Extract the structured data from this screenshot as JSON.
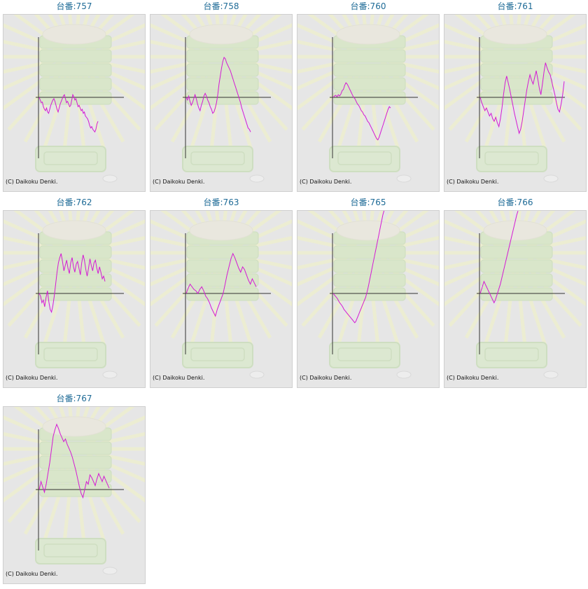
{
  "page": {
    "title_prefix": "台番:",
    "copyright": "(C) Daikoku Denki."
  },
  "colors": {
    "title": "#1d6a96",
    "line": "#d41ad4",
    "axis": "#333333",
    "panel_bg": "#e6e6e6"
  },
  "chart_data": [
    {
      "type": "line",
      "title": "台番:757",
      "machine": "757",
      "y": [
        0,
        -0.1,
        -0.2,
        -0.18,
        -0.35,
        -0.45,
        -0.5,
        -0.4,
        -0.55,
        -0.6,
        -0.45,
        -0.3,
        -0.2,
        -0.1,
        -0.05,
        -0.15,
        -0.3,
        -0.45,
        -0.55,
        -0.4,
        -0.25,
        -0.15,
        -0.05,
        0.05,
        0.1,
        -0.05,
        -0.2,
        -0.15,
        -0.25,
        -0.35,
        -0.3,
        -0.1,
        0.1,
        0.02,
        -0.1,
        -0.05,
        -0.2,
        -0.35,
        -0.3,
        -0.4,
        -0.5,
        -0.45,
        -0.6,
        -0.55,
        -0.7,
        -0.75,
        -0.8,
        -0.9,
        -1.05,
        -1.15,
        -1.1,
        -1.2,
        -1.25,
        -1.3,
        -1.2,
        -1.0,
        -0.9
      ]
    },
    {
      "type": "line",
      "title": "台番:758",
      "machine": "758",
      "y": [
        0,
        -0.1,
        0.05,
        -0.15,
        -0.3,
        -0.2,
        -0.05,
        0.1,
        -0.05,
        -0.25,
        -0.4,
        -0.5,
        -0.3,
        -0.15,
        0.05,
        0.15,
        0.05,
        -0.1,
        -0.2,
        -0.35,
        -0.45,
        -0.6,
        -0.55,
        -0.4,
        -0.2,
        0.1,
        0.5,
        0.8,
        1.1,
        1.35,
        1.5,
        1.45,
        1.3,
        1.2,
        1.1,
        1.0,
        0.85,
        0.7,
        0.55,
        0.4,
        0.25,
        0.1,
        -0.05,
        -0.2,
        -0.4,
        -0.55,
        -0.7,
        -0.85,
        -1.0,
        -1.15,
        -1.2,
        -1.3
      ]
    },
    {
      "type": "line",
      "title": "台番:760",
      "machine": "760",
      "y": [
        0,
        0.05,
        0.08,
        0.02,
        0.1,
        0.05,
        0.12,
        0.25,
        0.3,
        0.45,
        0.55,
        0.5,
        0.4,
        0.3,
        0.2,
        0.1,
        0.0,
        -0.05,
        -0.15,
        -0.25,
        -0.3,
        -0.4,
        -0.5,
        -0.55,
        -0.65,
        -0.7,
        -0.8,
        -0.9,
        -0.95,
        -1.05,
        -1.15,
        -1.25,
        -1.35,
        -1.45,
        -1.55,
        -1.6,
        -1.5,
        -1.35,
        -1.2,
        -1.05,
        -0.9,
        -0.75,
        -0.6,
        -0.45,
        -0.35,
        -0.4
      ]
    },
    {
      "type": "line",
      "title": "台番:761",
      "machine": "761",
      "y": [
        0,
        -0.2,
        -0.35,
        -0.5,
        -0.4,
        -0.55,
        -0.7,
        -0.6,
        -0.8,
        -0.9,
        -0.75,
        -0.95,
        -1.1,
        -0.8,
        -0.4,
        0.1,
        0.55,
        0.8,
        0.55,
        0.3,
        0.0,
        -0.3,
        -0.6,
        -0.85,
        -1.1,
        -1.35,
        -1.2,
        -0.9,
        -0.5,
        -0.1,
        0.3,
        0.6,
        0.85,
        0.65,
        0.5,
        0.75,
        1.0,
        0.7,
        0.35,
        0.1,
        0.5,
        0.95,
        1.3,
        1.1,
        0.95,
        0.85,
        0.6,
        0.35,
        0.1,
        -0.2,
        -0.45,
        -0.55,
        -0.25,
        0.1,
        0.6
      ]
    },
    {
      "type": "line",
      "title": "台番:762",
      "machine": "762",
      "y": [
        0,
        -0.1,
        -0.35,
        -0.25,
        -0.5,
        -0.15,
        0.1,
        -0.3,
        -0.6,
        -0.7,
        -0.45,
        -0.1,
        0.35,
        0.8,
        1.15,
        1.35,
        1.5,
        1.2,
        0.85,
        1.05,
        1.25,
        0.95,
        0.75,
        1.15,
        1.35,
        1.0,
        0.8,
        1.1,
        1.2,
        0.95,
        0.7,
        1.15,
        1.45,
        1.25,
        0.9,
        0.65,
        0.95,
        1.3,
        1.05,
        0.85,
        1.15,
        1.25,
        0.95,
        0.75,
        1.0,
        0.8,
        0.55,
        0.65,
        0.45
      ]
    },
    {
      "type": "line",
      "title": "台番:763",
      "machine": "763",
      "y": [
        0,
        0.2,
        0.35,
        0.25,
        0.15,
        0.1,
        0.0,
        0.15,
        0.25,
        0.1,
        -0.1,
        -0.2,
        -0.35,
        -0.55,
        -0.7,
        -0.85,
        -0.6,
        -0.4,
        -0.2,
        0.0,
        0.35,
        0.7,
        1.0,
        1.3,
        1.5,
        1.35,
        1.15,
        0.95,
        0.8,
        1.0,
        0.9,
        0.7,
        0.5,
        0.35,
        0.55,
        0.4,
        0.25
      ]
    },
    {
      "type": "line",
      "title": "台番:765",
      "machine": "765",
      "y": [
        0,
        -0.05,
        -0.1,
        -0.15,
        -0.2,
        -0.28,
        -0.35,
        -0.4,
        -0.45,
        -0.52,
        -0.6,
        -0.65,
        -0.7,
        -0.75,
        -0.8,
        -0.85,
        -0.9,
        -0.95,
        -1.0,
        -1.05,
        -1.1,
        -1.05,
        -0.95,
        -0.85,
        -0.75,
        -0.65,
        -0.55,
        -0.45,
        -0.35,
        -0.25,
        -0.15,
        0.0,
        0.15,
        0.35,
        0.55,
        0.75,
        0.95,
        1.15,
        1.35,
        1.55,
        1.75,
        1.95,
        2.15,
        2.35,
        2.55,
        2.75,
        2.95,
        3.1,
        3.25
      ]
    },
    {
      "type": "line",
      "title": "台番:766",
      "machine": "766",
      "y": [
        0,
        0.15,
        0.3,
        0.45,
        0.35,
        0.25,
        0.15,
        0.05,
        -0.05,
        -0.15,
        -0.25,
        -0.35,
        -0.25,
        -0.1,
        0.05,
        0.2,
        0.35,
        0.55,
        0.75,
        0.95,
        1.15,
        1.35,
        1.55,
        1.75,
        1.95,
        2.15,
        2.35,
        2.55,
        2.75,
        2.95,
        3.1
      ]
    },
    {
      "type": "line",
      "title": "台番:767",
      "machine": "767",
      "y": [
        0,
        0.3,
        0.1,
        -0.1,
        0.2,
        0.6,
        1.0,
        1.5,
        2.0,
        2.25,
        2.45,
        2.3,
        2.1,
        1.95,
        1.8,
        1.9,
        1.7,
        1.55,
        1.4,
        1.2,
        0.95,
        0.7,
        0.4,
        0.1,
        -0.15,
        -0.3,
        0.0,
        0.3,
        0.2,
        0.55,
        0.45,
        0.3,
        0.15,
        0.4,
        0.6,
        0.45,
        0.3,
        0.5,
        0.35,
        0.2,
        0.05
      ]
    }
  ]
}
